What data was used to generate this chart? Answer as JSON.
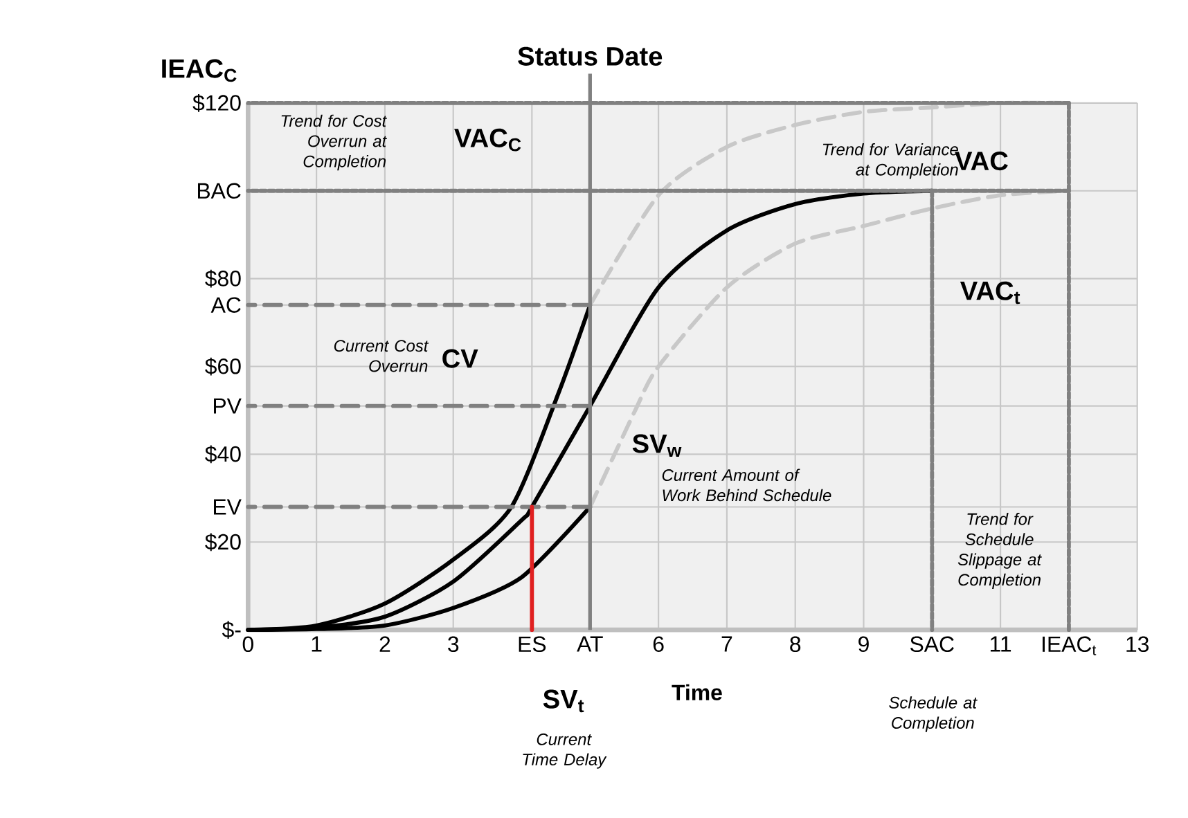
{
  "chart_data": {
    "type": "line",
    "xlabel": "Time",
    "ylabel": "IEAC$_{C}$",
    "xlim": [
      0,
      13
    ],
    "ylim": [
      0,
      120
    ],
    "xticks": [
      0,
      1,
      2,
      3,
      {
        "value": 4.15,
        "label": "ES"
      },
      {
        "value": 5,
        "label": "AT"
      },
      6,
      7,
      8,
      9,
      {
        "value": 10,
        "label": "SAC"
      },
      11,
      {
        "value": 12,
        "label": "IEAC$_{t}$"
      },
      13
    ],
    "yticks": [
      {
        "value": 0,
        "label": "$-"
      },
      {
        "value": 20,
        "label": "$20"
      },
      {
        "value": 28,
        "label": "EV"
      },
      {
        "value": 40,
        "label": "$40"
      },
      {
        "value": 51,
        "label": "PV"
      },
      {
        "value": 60,
        "label": "$60"
      },
      {
        "value": 74,
        "label": "AC"
      },
      {
        "value": 80,
        "label": "$80"
      },
      {
        "value": 100,
        "label": "BAC"
      },
      {
        "value": 120,
        "label": "$120"
      }
    ],
    "grid": true,
    "marker": "none",
    "series": [
      {
        "color": "#000000",
        "line_style": "solid",
        "x": [
          0,
          1,
          2,
          3,
          3.85,
          4.54,
          5
        ],
        "values": [
          0,
          1,
          6,
          16,
          28,
          54,
          74
        ]
      },
      {
        "color": "#000000",
        "line_style": "solid",
        "x": [
          0,
          1,
          2,
          3,
          4,
          4.15,
          5,
          6,
          7,
          8,
          9,
          10
        ],
        "values": [
          0,
          0.5,
          3,
          11,
          25,
          28,
          51,
          78,
          91,
          97,
          99.4,
          100
        ]
      },
      {
        "color": "#000000",
        "line_style": "solid",
        "x": [
          0,
          1,
          2,
          3,
          4,
          5
        ],
        "values": [
          0,
          0.2,
          1,
          5,
          12,
          28
        ]
      },
      {
        "color": "#c8c8c8",
        "line_style": "dashed",
        "x": [
          5,
          6,
          7,
          8,
          9,
          10,
          11,
          12
        ],
        "values": [
          74,
          99,
          110,
          115,
          118,
          119,
          120,
          120
        ]
      },
      {
        "color": "#c8c8c8",
        "line_style": "dashed",
        "x": [
          5,
          5.66,
          6,
          7,
          8,
          9,
          10,
          11,
          12
        ],
        "values": [
          28,
          50,
          60,
          78,
          88,
          92,
          96,
          99,
          100
        ]
      },
      {
        "color": "#808080",
        "line_style": "dashed",
        "x": [
          5,
          0
        ],
        "values": [
          74,
          74
        ]
      },
      {
        "color": "#808080",
        "line_style": "dashed",
        "x": [
          5,
          0
        ],
        "values": [
          51,
          51
        ]
      },
      {
        "color": "#808080",
        "line_style": "dashed",
        "x": [
          5,
          0
        ],
        "values": [
          28,
          28
        ]
      },
      {
        "color": "#808080",
        "line_style": "dotted",
        "x": [
          12,
          0
        ],
        "values": [
          120,
          120
        ]
      },
      {
        "color": "#808080",
        "line_style": "dotted",
        "x": [
          12,
          0
        ],
        "values": [
          100,
          100
        ]
      },
      {
        "color": "#808080",
        "line_style": "dotted",
        "x": [
          10,
          10
        ],
        "values": [
          100,
          0
        ]
      },
      {
        "color": "#808080",
        "line_style": "dotted",
        "x": [
          12,
          12
        ],
        "values": [
          120,
          0
        ]
      },
      {
        "color": "#e02020",
        "line_style": "solid",
        "x": [
          4.15,
          4.15
        ],
        "values": [
          28,
          0
        ]
      }
    ],
    "ref_lines": [
      {
        "axis": "x",
        "value": 5,
        "label": "Status Date",
        "color": "#808080"
      }
    ],
    "annotations": [
      "Trend for Cost Overrun at Completion",
      "VAC$_{C}$",
      "Trend for Variance at Completion",
      "VAC",
      "VAC$_{t}$",
      "Current Cost Overrun",
      "CV",
      "SV$_{w}$",
      "Current Amount of Work Behind Schedule",
      "Trend for Schedule Slippage at Completion",
      "SV$_{t}$",
      "Current Time Delay",
      "Schedule at Completion"
    ]
  }
}
